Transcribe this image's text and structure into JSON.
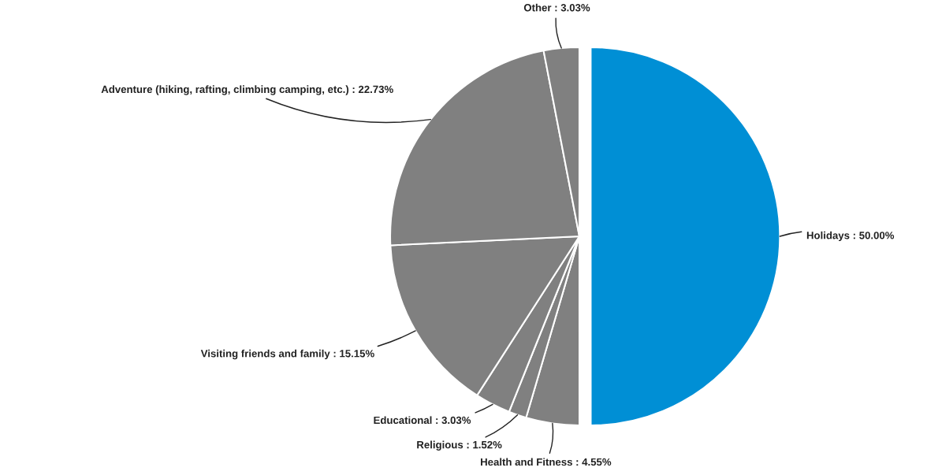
{
  "chart_data": {
    "type": "pie",
    "categories": [
      "Holidays",
      "Health and Fitness",
      "Religious",
      "Educational",
      "Visiting friends and family",
      "Adventure (hiking, rafting, climbing camping, etc.)",
      "Other"
    ],
    "values": [
      50.0,
      4.55,
      1.52,
      3.03,
      15.15,
      22.73,
      3.03
    ],
    "value_labels": [
      "50.00%",
      "4.55%",
      "1.52%",
      "3.03%",
      "15.15%",
      "22.73%",
      "3.03%"
    ],
    "colors": [
      "#008fd5",
      "#808080",
      "#808080",
      "#808080",
      "#808080",
      "#808080",
      "#808080"
    ],
    "legend": false
  }
}
